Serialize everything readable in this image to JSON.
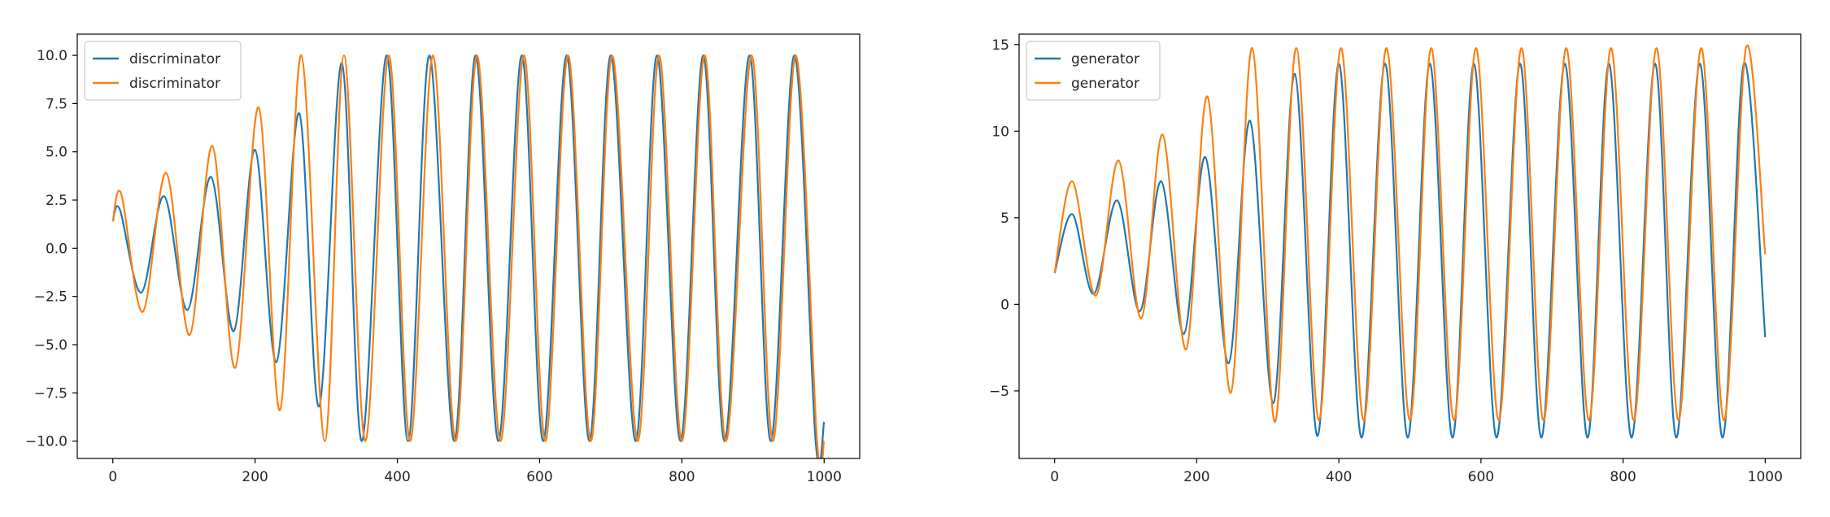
{
  "chart_data": [
    {
      "type": "line",
      "title": "",
      "xlabel": "",
      "ylabel": "",
      "xlim": [
        -50,
        1050
      ],
      "ylim": [
        -10.9,
        11.1
      ],
      "xticks": [
        0,
        200,
        400,
        600,
        800,
        1000
      ],
      "xtick_labels": [
        "0",
        "200",
        "400",
        "600",
        "800",
        "1000"
      ],
      "yticks": [
        -10.0,
        -7.5,
        -5.0,
        -2.5,
        0.0,
        2.5,
        5.0,
        7.5,
        10.0
      ],
      "ytick_labels": [
        "−10.0",
        "−7.5",
        "−5.0",
        "−2.5",
        "0.0",
        "2.5",
        "5.0",
        "7.5",
        "10.0"
      ],
      "grid": false,
      "legend_position": "top-left",
      "series": [
        {
          "name": "discriminator",
          "color": "#1f77b4",
          "x": [
            0,
            10,
            40,
            72,
            105,
            138,
            170,
            200,
            230,
            262,
            290,
            322,
            350,
            385,
            415,
            445,
            480,
            510,
            542,
            575,
            605,
            638,
            670,
            700,
            735,
            765,
            798,
            830,
            860,
            895,
            925,
            958,
            988,
            1000
          ],
          "y": [
            1.4,
            2.0,
            -2.3,
            2.7,
            -3.2,
            3.7,
            -4.3,
            5.1,
            -5.9,
            7.0,
            -8.2,
            9.6,
            -10.0,
            10.0,
            -10.0,
            10.0,
            -10.0,
            10.0,
            -10.0,
            10.0,
            -10.0,
            10.0,
            -10.0,
            10.0,
            -10.0,
            10.0,
            -10.0,
            10.0,
            -10.0,
            10.0,
            -10.0,
            10.0,
            -10.0,
            -9.0
          ]
        },
        {
          "name": "discriminator",
          "color": "#ff7f0e",
          "x": [
            0,
            12,
            42,
            75,
            108,
            140,
            172,
            205,
            235,
            265,
            298,
            325,
            355,
            388,
            418,
            450,
            482,
            512,
            545,
            578,
            608,
            640,
            672,
            702,
            738,
            768,
            800,
            832,
            862,
            898,
            928,
            960,
            990,
            1000
          ],
          "y": [
            1.4,
            2.8,
            -3.3,
            3.9,
            -4.5,
            5.3,
            -6.2,
            7.3,
            -8.4,
            10.0,
            -10.0,
            10.0,
            -10.0,
            10.0,
            -10.0,
            10.0,
            -10.0,
            10.0,
            -10.0,
            10.0,
            -10.0,
            10.0,
            -10.0,
            10.0,
            -10.0,
            10.0,
            -10.0,
            10.0,
            -10.0,
            10.0,
            -10.0,
            10.0,
            -10.0,
            -10.0
          ]
        }
      ]
    },
    {
      "type": "line",
      "title": "",
      "xlabel": "",
      "ylabel": "",
      "xlim": [
        -50,
        1050
      ],
      "ylim": [
        -8.9,
        15.6
      ],
      "xticks": [
        0,
        200,
        400,
        600,
        800,
        1000
      ],
      "xtick_labels": [
        "0",
        "200",
        "400",
        "600",
        "800",
        "1000"
      ],
      "yticks": [
        -5,
        0,
        5,
        10,
        15
      ],
      "ytick_labels": [
        "−5",
        "0",
        "5",
        "10",
        "15"
      ],
      "grid": false,
      "legend_position": "top-left",
      "series": [
        {
          "name": "generator",
          "color": "#1f77b4",
          "x": [
            0,
            25,
            55,
            88,
            120,
            150,
            182,
            212,
            245,
            275,
            308,
            338,
            370,
            400,
            432,
            465,
            497,
            528,
            560,
            590,
            622,
            655,
            685,
            718,
            750,
            780,
            812,
            845,
            875,
            908,
            940,
            970,
            1000
          ],
          "y": [
            1.8,
            5.2,
            0.6,
            6.0,
            -0.4,
            7.1,
            -1.7,
            8.5,
            -3.4,
            10.6,
            -5.7,
            13.3,
            -7.6,
            13.9,
            -7.7,
            13.9,
            -7.7,
            13.9,
            -7.7,
            13.9,
            -7.7,
            13.9,
            -7.7,
            13.9,
            -7.7,
            13.9,
            -7.7,
            13.9,
            -7.7,
            13.9,
            -7.7,
            13.9,
            -1.9
          ]
        },
        {
          "name": "generator",
          "color": "#ff7f0e",
          "x": [
            0,
            25,
            58,
            90,
            122,
            152,
            185,
            215,
            248,
            278,
            310,
            340,
            372,
            403,
            435,
            467,
            500,
            530,
            562,
            593,
            625,
            657,
            688,
            720,
            752,
            783,
            815,
            847,
            878,
            910,
            942,
            973,
            1000
          ],
          "y": [
            1.8,
            7.1,
            0.5,
            8.3,
            -0.8,
            9.8,
            -2.6,
            12.0,
            -5.1,
            14.8,
            -6.8,
            14.8,
            -6.7,
            14.8,
            -6.7,
            14.8,
            -6.7,
            14.8,
            -6.7,
            14.8,
            -6.7,
            14.8,
            -6.7,
            14.8,
            -6.7,
            14.8,
            -6.7,
            14.8,
            -6.7,
            14.8,
            -6.7,
            14.8,
            2.9
          ]
        }
      ]
    }
  ]
}
